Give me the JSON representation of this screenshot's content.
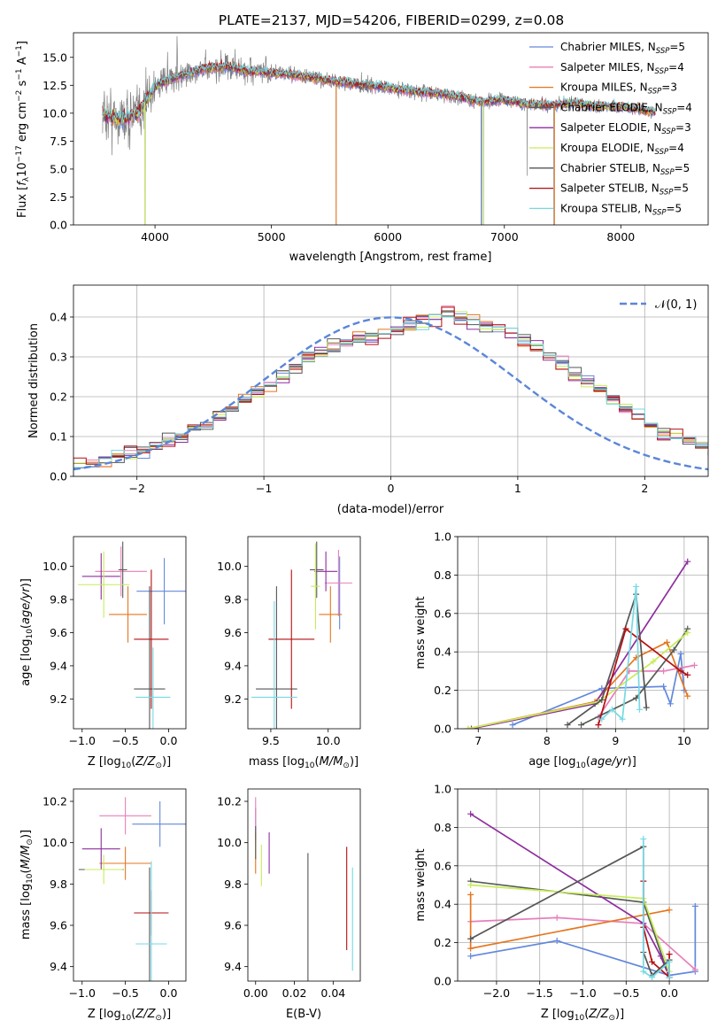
{
  "colors": [
    "#6388dc",
    "#e77fba",
    "#e5761e",
    "#555d55",
    "#8e2e9e",
    "#c7ec58",
    "#555555",
    "#b40e10",
    "#76d9e3"
  ],
  "legend_labels": [
    "Chabrier MILES, N$_{SSP}$=5",
    "Salpeter MILES, N$_{SSP}$=4",
    "Kroupa MILES, N$_{SSP}$=3",
    "Chabrier ELODIE, N$_{SSP}$=4",
    "Salpeter ELODIE, N$_{SSP}$=3",
    "Kroupa ELODIE, N$_{SSP}$=4",
    "Chabrier STELIB, N$_{SSP}$=5",
    "Salpeter STELIB, N$_{SSP}$=5",
    "Kroupa STELIB, N$_{SSP}$=5"
  ],
  "legend_display": [
    [
      "Chabrier MILES, N",
      "SSP",
      "=5"
    ],
    [
      "Salpeter MILES, N",
      "SSP",
      "=4"
    ],
    [
      "Kroupa MILES, N",
      "SSP",
      "=3"
    ],
    [
      "Chabrier ELODIE, N",
      "SSP",
      "=4"
    ],
    [
      "Salpeter ELODIE, N",
      "SSP",
      "=3"
    ],
    [
      "Kroupa ELODIE, N",
      "SSP",
      "=4"
    ],
    [
      "Chabrier STELIB, N",
      "SSP",
      "=5"
    ],
    [
      "Salpeter STELIB, N",
      "SSP",
      "=5"
    ],
    [
      "Kroupa STELIB, N",
      "SSP",
      "=5"
    ]
  ],
  "chart_data": [
    {
      "type": "line",
      "id": "spectrum",
      "title": "PLATE=2137, MJD=54206, FIBERID=0299, z=0.08",
      "xlabel": "wavelength [Angstrom, rest frame]",
      "ylabel_parts": [
        "Flux [f",
        "λ",
        "10",
        "−17",
        " erg cm",
        "−2",
        " s",
        "−1",
        " A",
        "−1",
        "]"
      ],
      "xlim": [
        3300,
        8750
      ],
      "ylim": [
        0,
        17.2
      ],
      "xticks": [
        4000,
        5000,
        6000,
        7000,
        8000
      ],
      "yticks": [
        0.0,
        2.5,
        5.0,
        7.5,
        10.0,
        12.5,
        15.0
      ],
      "grid": false,
      "legend": "right",
      "continuum": [
        [
          3550,
          10.0
        ],
        [
          3700,
          9.5
        ],
        [
          3850,
          9.9
        ],
        [
          4000,
          12.4
        ],
        [
          4200,
          13.3
        ],
        [
          4400,
          13.9
        ],
        [
          4600,
          14.2
        ],
        [
          4800,
          13.8
        ],
        [
          5000,
          13.6
        ],
        [
          5200,
          13.4
        ],
        [
          5400,
          13.1
        ],
        [
          5600,
          12.8
        ],
        [
          5800,
          12.5
        ],
        [
          6000,
          12.3
        ],
        [
          6200,
          12.0
        ],
        [
          6400,
          11.8
        ],
        [
          6600,
          11.5
        ],
        [
          6800,
          11.0
        ],
        [
          7000,
          11.2
        ],
        [
          7200,
          10.8
        ],
        [
          7400,
          10.7
        ],
        [
          7600,
          10.9
        ],
        [
          7800,
          10.6
        ],
        [
          8000,
          10.6
        ],
        [
          8300,
          10.1
        ]
      ],
      "data_noise_spikes": [
        [
          3915,
          0.0
        ],
        [
          5555,
          0.0
        ],
        [
          6800,
          0.0
        ],
        [
          6822,
          0.0
        ],
        [
          7425,
          0.0
        ],
        [
          7195,
          4.4
        ]
      ]
    },
    {
      "type": "bar",
      "id": "residuals",
      "xlabel": "(data-model)/error",
      "ylabel": "Normed distribution",
      "xlim": [
        -2.5,
        2.5
      ],
      "ylim": [
        0,
        0.48
      ],
      "xticks": [
        -2,
        -1,
        0,
        1,
        2
      ],
      "yticks": [
        0.0,
        0.1,
        0.2,
        0.3,
        0.4
      ],
      "grid": true,
      "legend": "top-right",
      "reference_curve": {
        "name": "𝒩(0, 1)",
        "mu": 0,
        "sigma": 1
      },
      "bin_width": 0.1,
      "bin_start": -2.5,
      "base_values": [
        0.035,
        0.03,
        0.04,
        0.05,
        0.06,
        0.065,
        0.075,
        0.09,
        0.1,
        0.12,
        0.13,
        0.15,
        0.17,
        0.19,
        0.21,
        0.23,
        0.25,
        0.27,
        0.3,
        0.31,
        0.32,
        0.335,
        0.34,
        0.35,
        0.36,
        0.37,
        0.38,
        0.39,
        0.4,
        0.41,
        0.4,
        0.39,
        0.38,
        0.37,
        0.36,
        0.34,
        0.32,
        0.3,
        0.28,
        0.26,
        0.24,
        0.22,
        0.19,
        0.17,
        0.15,
        0.13,
        0.11,
        0.1,
        0.09,
        0.08,
        0.06,
        0.055,
        0.05,
        0.04,
        0.035,
        0.03,
        0.03,
        0.025,
        0.03,
        0.025,
        0.02,
        0.02,
        0.015,
        0.015,
        0.01,
        0.01,
        0.008,
        0.006,
        0.005,
        0.004
      ]
    },
    {
      "type": "scatter",
      "id": "age_vs_Z",
      "xlabel": "Z [log10(Z/Z☉)]",
      "ylabel": "age [log10(age/yr)]",
      "xlim": [
        -1.1,
        0.2
      ],
      "ylim": [
        9.02,
        10.18
      ],
      "xticks": [
        -1.0,
        -0.5,
        0.0
      ],
      "yticks": [
        9.2,
        9.4,
        9.6,
        9.8,
        10.0
      ],
      "points": [
        {
          "x": -0.05,
          "y": 9.85,
          "xerr": 0.32,
          "yerr": 0.2
        },
        {
          "x": -0.55,
          "y": 9.97,
          "xerr": 0.3,
          "yerr": 0.15
        },
        {
          "x": -0.47,
          "y": 9.71,
          "xerr": 0.22,
          "yerr": 0.17
        },
        {
          "x": -0.53,
          "y": 9.98,
          "xerr": 0.05,
          "yerr": 0.17
        },
        {
          "x": -0.78,
          "y": 9.94,
          "xerr": 0.22,
          "yerr": 0.14
        },
        {
          "x": -0.75,
          "y": 9.89,
          "xerr": 0.3,
          "yerr": 0.2
        },
        {
          "x": -0.22,
          "y": 9.26,
          "xerr": 0.18,
          "yerr": 0.62
        },
        {
          "x": -0.2,
          "y": 9.56,
          "xerr": 0.2,
          "yerr": 0.42
        },
        {
          "x": -0.18,
          "y": 9.21,
          "xerr": 0.2,
          "yerr": 0.3
        }
      ]
    },
    {
      "type": "scatter",
      "id": "age_vs_mass",
      "xlabel": "mass [log10(M/M☉)]",
      "ylabel": "",
      "xlim": [
        9.3,
        10.28
      ],
      "ylim": [
        9.02,
        10.18
      ],
      "xticks": [
        9.5,
        10.0
      ],
      "yticks": [
        9.2,
        9.4,
        9.6,
        9.8,
        10.0
      ],
      "points": [
        {
          "x": 10.1,
          "y": 9.84,
          "xerr": 0.0,
          "yerr": 0.22
        },
        {
          "x": 10.09,
          "y": 9.9,
          "xerr": 0.12,
          "yerr": 0.2
        },
        {
          "x": 10.02,
          "y": 9.71,
          "xerr": 0.1,
          "yerr": 0.17
        },
        {
          "x": 9.9,
          "y": 9.98,
          "xerr": 0.06,
          "yerr": 0.17
        },
        {
          "x": 9.98,
          "y": 9.97,
          "xerr": 0.1,
          "yerr": 0.12
        },
        {
          "x": 9.89,
          "y": 9.88,
          "xerr": 0.04,
          "yerr": 0.26
        },
        {
          "x": 9.55,
          "y": 9.26,
          "xerr": 0.18,
          "yerr": 0.62
        },
        {
          "x": 9.68,
          "y": 9.56,
          "xerr": 0.2,
          "yerr": 0.42
        },
        {
          "x": 9.53,
          "y": 9.21,
          "xerr": 0.2,
          "yerr": 0.58
        }
      ]
    },
    {
      "type": "line",
      "id": "mass_weight_vs_age",
      "xlabel": "age [log10(age/yr)]",
      "ylabel": "mass weight",
      "xlim": [
        6.7,
        10.35
      ],
      "ylim": [
        0,
        1.0
      ],
      "xticks": [
        7,
        8,
        9,
        10
      ],
      "yticks": [
        0.0,
        0.2,
        0.4,
        0.6,
        0.8,
        1.0
      ],
      "grid": true,
      "series": [
        {
          "x": [
            7.5,
            8.8,
            9.7,
            9.8,
            9.95,
            10.0
          ],
          "y": [
            0.02,
            0.21,
            0.22,
            0.13,
            0.39,
            0.2
          ]
        },
        {
          "x": [
            8.75,
            9.2,
            9.7,
            10.15
          ],
          "y": [
            0.06,
            0.3,
            0.3,
            0.33
          ]
        },
        {
          "x": [
            6.85,
            8.7,
            9.3,
            9.75,
            10.05
          ],
          "y": [
            0.0,
            0.14,
            0.37,
            0.45,
            0.17
          ]
        },
        {
          "x": [
            8.5,
            9.3,
            9.85,
            10.05
          ],
          "y": [
            0.02,
            0.16,
            0.41,
            0.52
          ]
        },
        {
          "x": [
            6.9,
            8.7,
            10.05
          ],
          "y": [
            0.0,
            0.13,
            0.87
          ]
        },
        {
          "x": [
            6.85,
            8.75,
            9.55,
            10.05
          ],
          "y": [
            0.0,
            0.14,
            0.35,
            0.5
          ]
        },
        {
          "x": [
            8.3,
            8.8,
            9.3,
            9.45
          ],
          "y": [
            0.02,
            0.15,
            0.7,
            0.11
          ]
        },
        {
          "x": [
            8.75,
            9.15,
            9.95,
            10.05
          ],
          "y": [
            0.02,
            0.52,
            0.3,
            0.28
          ]
        },
        {
          "x": [
            8.8,
            8.95,
            9.1,
            9.3,
            9.35
          ],
          "y": [
            0.05,
            0.1,
            0.05,
            0.74,
            0.1
          ]
        }
      ]
    },
    {
      "type": "scatter",
      "id": "mass_vs_Z",
      "xlabel": "Z [log10(Z/Z☉)]",
      "ylabel": "mass [log10(M/M☉)]",
      "xlim": [
        -1.1,
        0.2
      ],
      "ylim": [
        9.33,
        10.26
      ],
      "xticks": [
        -1.0,
        -0.5,
        0.0
      ],
      "yticks": [
        9.4,
        9.6,
        9.8,
        10.0,
        10.2
      ],
      "points": [
        {
          "x": -0.1,
          "y": 10.09,
          "xerr": 0.32,
          "yerr": 0.11
        },
        {
          "x": -0.5,
          "y": 10.13,
          "xerr": 0.3,
          "yerr": 0.09
        },
        {
          "x": -0.5,
          "y": 9.9,
          "xerr": 0.3,
          "yerr": 0.08
        },
        {
          "x": -0.78,
          "y": 9.87,
          "xerr": 0.26,
          "yerr": 0.0
        },
        {
          "x": -0.78,
          "y": 9.97,
          "xerr": 0.22,
          "yerr": 0.1
        },
        {
          "x": -0.75,
          "y": 9.87,
          "xerr": 0.22,
          "yerr": 0.07
        },
        {
          "x": -0.22,
          "y": 9.5,
          "xerr": 0.0,
          "yerr": 0.38
        },
        {
          "x": -0.2,
          "y": 9.66,
          "xerr": 0.2,
          "yerr": 0.11
        },
        {
          "x": -0.2,
          "y": 9.51,
          "xerr": 0.18,
          "yerr": 0.4
        }
      ]
    },
    {
      "type": "scatter",
      "id": "mass_vs_EBV",
      "xlabel": "E(B-V)",
      "ylabel": "",
      "xlim": [
        -0.004,
        0.054
      ],
      "ylim": [
        9.33,
        10.26
      ],
      "xticks": [
        0.0,
        0.02,
        0.04
      ],
      "yticks": [
        9.4,
        9.6,
        9.8,
        10.0,
        10.2
      ],
      "points": [
        {
          "x": 0.0,
          "y": 10.09,
          "xerr": 0,
          "yerr": 0.08
        },
        {
          "x": 0.0,
          "y": 10.12,
          "xerr": 0,
          "yerr": 0.1
        },
        {
          "x": 0.0,
          "y": 9.95,
          "xerr": 0,
          "yerr": 0.1
        },
        {
          "x": 0.0,
          "y": 10.0,
          "xerr": 0,
          "yerr": 0.08
        },
        {
          "x": 0.007,
          "y": 9.95,
          "xerr": 0,
          "yerr": 0.1
        },
        {
          "x": 0.003,
          "y": 9.89,
          "xerr": 0,
          "yerr": 0.1
        },
        {
          "x": 0.027,
          "y": 9.62,
          "xerr": 0,
          "yerr": 0.33
        },
        {
          "x": 0.047,
          "y": 9.73,
          "xerr": 0,
          "yerr": 0.25
        },
        {
          "x": 0.05,
          "y": 9.63,
          "xerr": 0,
          "yerr": 0.25
        }
      ]
    },
    {
      "type": "line",
      "id": "mass_weight_vs_Z",
      "xlabel": "Z [log10(Z/Z☉)]",
      "ylabel": "mass weight",
      "xlim": [
        -2.45,
        0.45
      ],
      "ylim": [
        0,
        1.0
      ],
      "xticks": [
        -2.0,
        -1.5,
        -1.0,
        -0.5,
        0.0
      ],
      "yticks": [
        0.0,
        0.2,
        0.4,
        0.6,
        0.8,
        1.0
      ],
      "grid": true,
      "series": [
        {
          "x": [
            -2.3,
            -1.3,
            0.0,
            0.3,
            0.3
          ],
          "y": [
            0.13,
            0.21,
            0.03,
            0.05,
            0.39
          ]
        },
        {
          "x": [
            -2.3,
            -1.3,
            -0.3,
            0.3
          ],
          "y": [
            0.31,
            0.33,
            0.3,
            0.06
          ]
        },
        {
          "x": [
            -2.3,
            -2.3,
            0.0
          ],
          "y": [
            0.45,
            0.17,
            0.37
          ]
        },
        {
          "x": [
            -2.3,
            -0.3,
            0.0
          ],
          "y": [
            0.52,
            0.41,
            0.02
          ]
        },
        {
          "x": [
            -2.3,
            -0.3,
            -0.1,
            0.0
          ],
          "y": [
            0.87,
            0.3,
            0.13,
            0.02
          ]
        },
        {
          "x": [
            -2.3,
            -0.3,
            0.0
          ],
          "y": [
            0.5,
            0.43,
            0.05
          ]
        },
        {
          "x": [
            -2.3,
            -0.3,
            -0.3,
            -0.2,
            0.0
          ],
          "y": [
            0.22,
            0.7,
            0.15,
            0.03,
            0.11
          ]
        },
        {
          "x": [
            -0.3,
            -0.3,
            -0.2,
            0.0,
            0.0
          ],
          "y": [
            0.52,
            0.28,
            0.1,
            0.02,
            0.14
          ]
        },
        {
          "x": [
            -0.3,
            -0.3,
            -0.2,
            0.0,
            0.0
          ],
          "y": [
            0.74,
            0.05,
            0.02,
            0.1,
            0.02
          ]
        }
      ]
    }
  ]
}
